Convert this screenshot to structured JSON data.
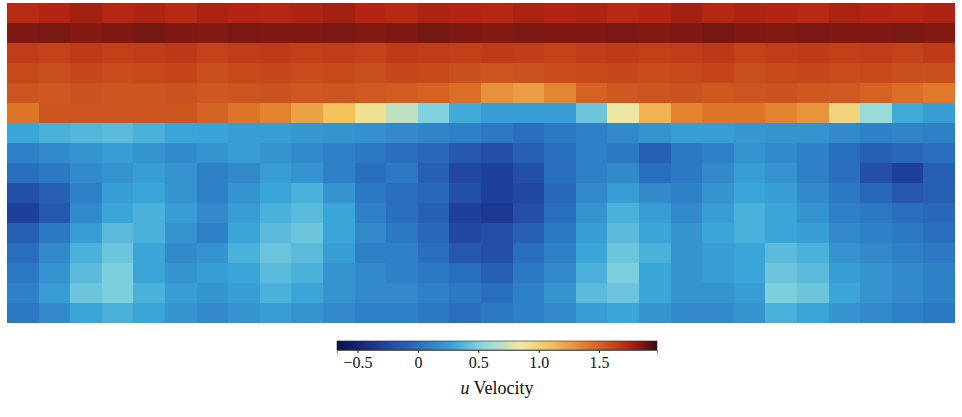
{
  "chart_data": {
    "type": "heatmap",
    "tick_labels": false,
    "cells": [
      [
        1.72,
        1.75,
        1.78,
        1.74,
        1.76,
        1.73,
        1.77,
        1.75,
        1.74,
        1.76,
        1.78,
        1.75,
        1.73,
        1.76,
        1.75,
        1.74,
        1.77,
        1.75,
        1.76,
        1.73,
        1.75,
        1.78,
        1.74,
        1.76,
        1.75,
        1.73,
        1.77,
        1.75,
        1.74,
        1.76
      ],
      [
        1.85,
        1.86,
        1.84,
        1.85,
        1.87,
        1.85,
        1.84,
        1.86,
        1.85,
        1.85,
        1.86,
        1.84,
        1.85,
        1.87,
        1.85,
        1.84,
        1.86,
        1.85,
        1.85,
        1.86,
        1.84,
        1.85,
        1.87,
        1.85,
        1.84,
        1.86,
        1.85,
        1.85,
        1.86,
        1.84
      ],
      [
        1.65,
        1.63,
        1.66,
        1.64,
        1.65,
        1.67,
        1.63,
        1.65,
        1.66,
        1.64,
        1.65,
        1.63,
        1.66,
        1.65,
        1.64,
        1.66,
        1.65,
        1.63,
        1.65,
        1.66,
        1.64,
        1.65,
        1.67,
        1.63,
        1.65,
        1.66,
        1.64,
        1.65,
        1.63,
        1.66
      ],
      [
        1.6,
        1.58,
        1.61,
        1.59,
        1.6,
        1.62,
        1.58,
        1.6,
        1.61,
        1.59,
        1.6,
        1.58,
        1.61,
        1.6,
        1.57,
        1.55,
        1.56,
        1.59,
        1.6,
        1.61,
        1.59,
        1.6,
        1.62,
        1.58,
        1.6,
        1.61,
        1.59,
        1.6,
        1.58,
        1.57
      ],
      [
        1.55,
        1.54,
        1.56,
        1.55,
        1.55,
        1.56,
        1.54,
        1.55,
        1.56,
        1.54,
        1.55,
        1.53,
        1.52,
        1.5,
        1.45,
        1.3,
        1.25,
        1.35,
        1.5,
        1.54,
        1.55,
        1.56,
        1.54,
        1.55,
        1.56,
        1.54,
        1.53,
        1.5,
        1.45,
        1.4
      ],
      [
        1.42,
        1.55,
        1.55,
        1.55,
        1.55,
        1.55,
        1.49,
        1.42,
        1.36,
        1.23,
        1.1,
        0.9,
        0.7,
        0.51,
        0.32,
        0.25,
        0.25,
        0.25,
        0.45,
        0.84,
        1.16,
        1.36,
        1.42,
        1.42,
        1.36,
        1.29,
        0.97,
        0.58,
        0.32,
        0.25
      ],
      [
        0.3,
        0.35,
        0.38,
        0.4,
        0.35,
        0.3,
        0.28,
        0.25,
        0.25,
        0.22,
        0.2,
        0.18,
        0.15,
        0.12,
        0.1,
        0.05,
        0.0,
        0.05,
        0.1,
        0.15,
        0.2,
        0.25,
        0.25,
        0.22,
        0.2,
        0.2,
        0.15,
        0.1,
        0.12,
        0.1
      ],
      [
        0.1,
        0.15,
        0.2,
        0.25,
        0.2,
        0.15,
        0.2,
        0.25,
        0.2,
        0.15,
        0.1,
        0.05,
        0.0,
        -0.05,
        -0.15,
        -0.2,
        -0.1,
        0.0,
        0.1,
        0.05,
        -0.1,
        0.05,
        0.1,
        0.2,
        0.15,
        0.1,
        0.0,
        -0.1,
        -0.05,
        0.0
      ],
      [
        0.0,
        0.05,
        0.15,
        0.2,
        0.25,
        0.2,
        0.1,
        0.15,
        0.25,
        0.2,
        0.1,
        0.0,
        0.05,
        -0.1,
        -0.25,
        -0.3,
        -0.2,
        0.0,
        0.1,
        0.15,
        0.0,
        0.05,
        0.15,
        0.25,
        0.2,
        0.1,
        0.0,
        -0.2,
        -0.3,
        -0.1
      ],
      [
        -0.2,
        -0.1,
        0.1,
        0.25,
        0.3,
        0.2,
        0.1,
        0.2,
        0.3,
        0.35,
        0.2,
        0.05,
        0.0,
        -0.05,
        -0.2,
        -0.3,
        -0.25,
        -0.05,
        0.15,
        0.25,
        0.15,
        0.1,
        0.2,
        0.3,
        0.25,
        0.15,
        0.05,
        -0.05,
        -0.15,
        -0.1
      ],
      [
        -0.3,
        -0.15,
        0.15,
        0.3,
        0.35,
        0.25,
        0.15,
        0.25,
        0.35,
        0.4,
        0.3,
        0.1,
        0.0,
        -0.1,
        -0.3,
        -0.35,
        -0.2,
        0.0,
        0.2,
        0.35,
        0.25,
        0.15,
        0.25,
        0.35,
        0.3,
        0.2,
        0.1,
        0.05,
        0.0,
        -0.05
      ],
      [
        -0.1,
        0.05,
        0.25,
        0.4,
        0.35,
        0.2,
        0.1,
        0.3,
        0.4,
        0.45,
        0.3,
        0.15,
        0.05,
        -0.05,
        -0.25,
        -0.2,
        -0.1,
        0.05,
        0.25,
        0.4,
        0.3,
        0.2,
        0.3,
        0.35,
        0.3,
        0.25,
        0.15,
        0.1,
        0.05,
        0.0
      ],
      [
        0.0,
        0.15,
        0.35,
        0.45,
        0.3,
        0.15,
        0.2,
        0.35,
        0.45,
        0.4,
        0.25,
        0.1,
        0.1,
        0.0,
        -0.15,
        -0.2,
        0.0,
        0.1,
        0.3,
        0.45,
        0.35,
        0.2,
        0.25,
        0.3,
        0.4,
        0.35,
        0.2,
        0.15,
        0.1,
        0.05
      ],
      [
        0.05,
        0.2,
        0.4,
        0.5,
        0.3,
        0.2,
        0.25,
        0.3,
        0.4,
        0.35,
        0.2,
        0.15,
        0.1,
        0.05,
        0.0,
        -0.1,
        0.05,
        0.15,
        0.35,
        0.5,
        0.3,
        0.2,
        0.25,
        0.3,
        0.45,
        0.4,
        0.25,
        0.2,
        0.15,
        0.1
      ],
      [
        0.1,
        0.25,
        0.45,
        0.5,
        0.35,
        0.25,
        0.2,
        0.25,
        0.35,
        0.3,
        0.2,
        0.15,
        0.15,
        0.1,
        0.05,
        0.0,
        0.1,
        0.2,
        0.4,
        0.45,
        0.3,
        0.2,
        0.2,
        0.25,
        0.5,
        0.45,
        0.3,
        0.2,
        0.15,
        0.1
      ],
      [
        0.05,
        0.15,
        0.3,
        0.35,
        0.3,
        0.2,
        0.15,
        0.2,
        0.25,
        0.2,
        0.15,
        0.1,
        0.1,
        0.05,
        0.0,
        0.05,
        0.1,
        0.15,
        0.25,
        0.3,
        0.2,
        0.15,
        0.15,
        0.2,
        0.35,
        0.3,
        0.2,
        0.15,
        0.1,
        0.05
      ]
    ],
    "colorbar": {
      "label": "u Velocity",
      "range": [
        -0.67,
        1.98
      ],
      "ticks": [
        {
          "value": -0.5,
          "label": "−0.5"
        },
        0,
        0.5,
        {
          "value": 1,
          "label": "1.0"
        },
        1.5
      ]
    }
  }
}
